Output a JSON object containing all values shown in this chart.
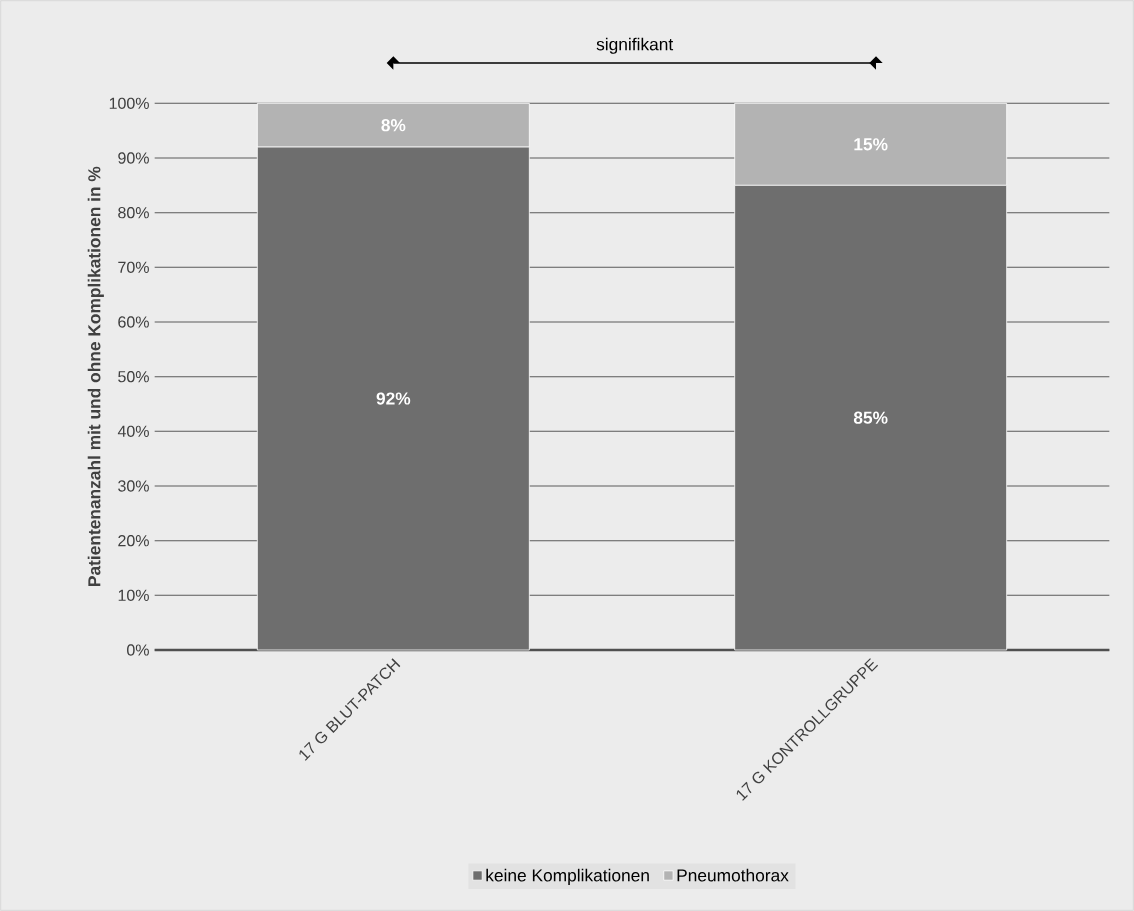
{
  "chart_data": {
    "type": "bar",
    "stacked": true,
    "ylabel": "Patientenanzahl mit und ohne Komplikationen in %",
    "categories": [
      "17 G BLUT-PATCH",
      "17 G KONTROLLGRUPPE"
    ],
    "series": [
      {
        "name": "keine Komplikationen",
        "color": "#6e6e6e",
        "values": [
          92,
          85
        ],
        "value_labels": [
          "92%",
          "85%"
        ]
      },
      {
        "name": "Pneumothorax",
        "color": "#b3b3b3",
        "values": [
          8,
          15
        ],
        "value_labels": [
          "8%",
          "15%"
        ]
      }
    ],
    "ylim": [
      0,
      100
    ],
    "yticks": [
      {
        "value": 0,
        "label": "0%"
      },
      {
        "value": 10,
        "label": "10%"
      },
      {
        "value": 20,
        "label": "20%"
      },
      {
        "value": 30,
        "label": "30%"
      },
      {
        "value": 40,
        "label": "40%"
      },
      {
        "value": 50,
        "label": "50%"
      },
      {
        "value": 60,
        "label": "60%"
      },
      {
        "value": 70,
        "label": "70%"
      },
      {
        "value": 80,
        "label": "80%"
      },
      {
        "value": 90,
        "label": "90%"
      },
      {
        "value": 100,
        "label": "100%"
      }
    ],
    "grid": "y",
    "legend": "bottom",
    "annotations": [
      "signifikant"
    ]
  }
}
